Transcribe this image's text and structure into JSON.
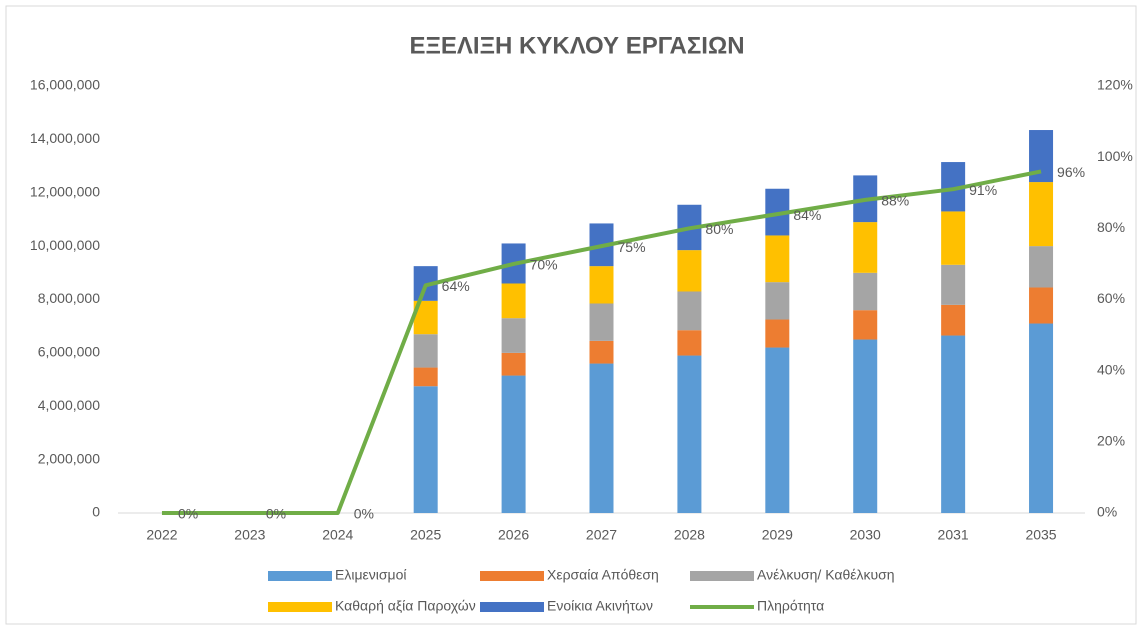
{
  "chart_data": {
    "type": "bar",
    "title": "ΕΞΕΛΙΞΗ ΚΥΚΛΟΥ ΕΡΓΑΣΙΩΝ",
    "categories": [
      "2022",
      "2023",
      "2024",
      "2025",
      "2026",
      "2027",
      "2028",
      "2029",
      "2030",
      "2031",
      "2035"
    ],
    "stacked": true,
    "series": [
      {
        "name": "Ελιμενισμοί",
        "color": "#5B9BD5",
        "values": [
          0,
          0,
          0,
          4750000,
          5150000,
          5600000,
          5900000,
          6200000,
          6500000,
          6650000,
          7100000
        ]
      },
      {
        "name": "Χερσαία Απόθεση",
        "color": "#ED7D31",
        "values": [
          0,
          0,
          0,
          700000,
          850000,
          850000,
          950000,
          1050000,
          1100000,
          1150000,
          1350000
        ]
      },
      {
        "name": "Ανέλκυση/ Καθέλκυση",
        "color": "#A5A5A5",
        "values": [
          0,
          0,
          0,
          1250000,
          1300000,
          1400000,
          1450000,
          1400000,
          1400000,
          1500000,
          1550000
        ]
      },
      {
        "name": "Καθαρή αξία Παροχών",
        "color": "#FFC000",
        "values": [
          0,
          0,
          0,
          1250000,
          1300000,
          1400000,
          1550000,
          1750000,
          1900000,
          2000000,
          2400000
        ]
      },
      {
        "name": "Ενοίκια Ακινήτων",
        "color": "#4472C4",
        "values": [
          0,
          0,
          0,
          1300000,
          1500000,
          1600000,
          1700000,
          1750000,
          1750000,
          1850000,
          1950000
        ]
      },
      {
        "name": "Πληρότητα",
        "color": "#70AD47",
        "type": "line",
        "axis": "y2",
        "values": [
          0,
          0,
          0,
          64,
          70,
          75,
          80,
          84,
          88,
          91,
          96
        ],
        "value_labels": [
          "0%",
          "0%",
          "0%",
          "64%",
          "70%",
          "75%",
          "80%",
          "84%",
          "88%",
          "91%",
          "96%"
        ]
      }
    ],
    "ylim": [
      0,
      16000000
    ],
    "yticks": [
      0,
      {
        "value": 2000000,
        "label": "2,000,000"
      },
      {
        "value": 4000000,
        "label": "4,000,000"
      },
      {
        "value": 6000000,
        "label": "6,000,000"
      },
      {
        "value": 8000000,
        "label": "8,000,000"
      },
      {
        "value": 10000000,
        "label": "10,000,000"
      },
      {
        "value": 12000000,
        "label": "12,000,000"
      },
      {
        "value": 14000000,
        "label": "14,000,000"
      },
      {
        "value": 16000000,
        "label": "16,000,000"
      }
    ],
    "y2lim": [
      0,
      120
    ],
    "y2ticks": [
      {
        "value": 0,
        "label": "0%"
      },
      {
        "value": 20,
        "label": "20%"
      },
      {
        "value": 40,
        "label": "40%"
      },
      {
        "value": 60,
        "label": "60%"
      },
      {
        "value": 80,
        "label": "80%"
      },
      {
        "value": 100,
        "label": "100%"
      },
      {
        "value": 120,
        "label": "120%"
      }
    ],
    "legend": "bottom"
  }
}
